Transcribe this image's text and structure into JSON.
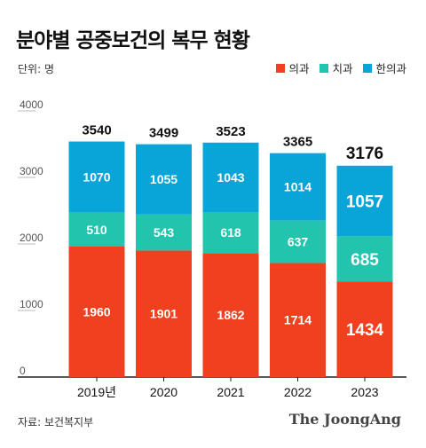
{
  "title": "분야별 공중보건의 복무 현황",
  "unit_label": "단위: 명",
  "source": "자료: 보건복지부",
  "brand": "The JoongAng",
  "chart_data": {
    "type": "bar",
    "stacked": true,
    "categories": [
      "2019년",
      "2020",
      "2021",
      "2022",
      "2023"
    ],
    "ylim": [
      0,
      4000
    ],
    "yticks": [
      0,
      1000,
      2000,
      3000,
      4000
    ],
    "grid": false,
    "legend_position": "top-right",
    "series": [
      {
        "name": "의과",
        "color": "#f1401f",
        "values": [
          1960,
          1901,
          1862,
          1714,
          1434
        ]
      },
      {
        "name": "치과",
        "color": "#22c4ae",
        "values": [
          510,
          543,
          618,
          637,
          685
        ]
      },
      {
        "name": "한의과",
        "color": "#0aa5d8",
        "values": [
          1070,
          1055,
          1043,
          1014,
          1057
        ]
      }
    ],
    "totals": [
      3540,
      3499,
      3523,
      3365,
      3176
    ],
    "highlight_index": 4
  }
}
